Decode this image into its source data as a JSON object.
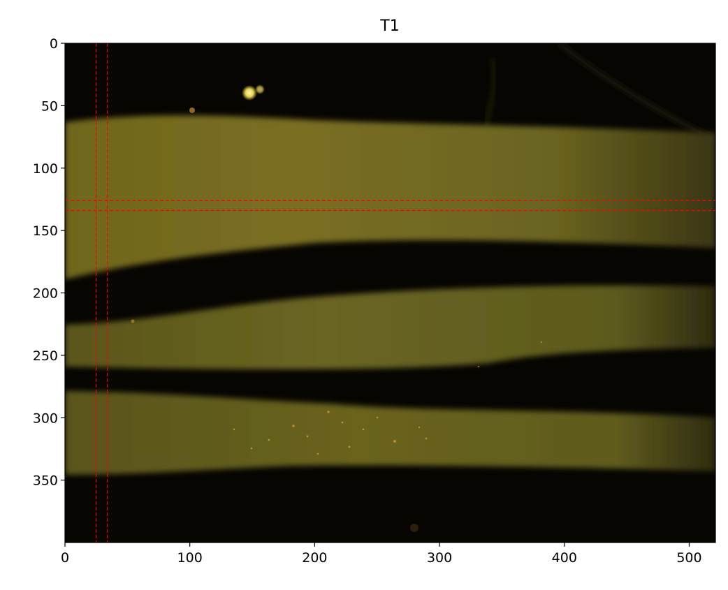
{
  "figure": {
    "title": "T1",
    "x_ticks": [
      "0",
      "100",
      "200",
      "300",
      "400",
      "500"
    ],
    "y_ticks": [
      "0",
      "50",
      "100",
      "150",
      "200",
      "250",
      "300",
      "350"
    ],
    "x_range": [
      0,
      521
    ],
    "y_range": [
      400,
      0
    ],
    "guide_lines": {
      "color": "#ff0000",
      "style": "dashed",
      "vertical_x": [
        25,
        34
      ],
      "horizontal_y": [
        126,
        134
      ]
    }
  },
  "image": {
    "description_colors": {
      "background": "#070502",
      "tissue_bright": "#7a6e22",
      "tissue_mid": "#5d5a1c",
      "speckle": "#d19a3a"
    }
  }
}
